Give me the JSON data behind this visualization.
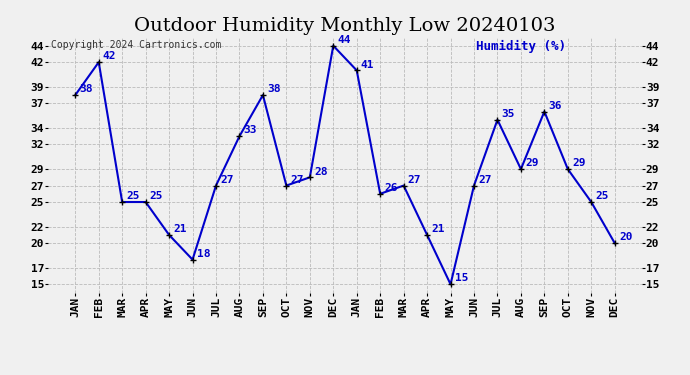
{
  "title": "Outdoor Humidity Monthly Low 20240103",
  "copyright_text": "Copyright 2024 Cartronics.com",
  "legend_label": "Humidity (%)",
  "months": [
    "JAN",
    "FEB",
    "MAR",
    "APR",
    "MAY",
    "JUN",
    "JUL",
    "AUG",
    "SEP",
    "OCT",
    "NOV",
    "DEC",
    "JAN",
    "FEB",
    "MAR",
    "APR",
    "MAY",
    "JUN",
    "JUL",
    "AUG",
    "SEP",
    "OCT",
    "NOV",
    "DEC"
  ],
  "values": [
    38,
    42,
    25,
    25,
    21,
    18,
    27,
    33,
    38,
    27,
    28,
    44,
    41,
    26,
    27,
    21,
    15,
    27,
    35,
    29,
    36,
    29,
    25,
    20
  ],
  "line_color": "#0000cc",
  "marker_color": "#000000",
  "title_fontsize": 14,
  "annotation_fontsize": 8,
  "tick_fontsize": 8,
  "copyright_fontsize": 7,
  "legend_fontsize": 9,
  "ylim_min": 14,
  "ylim_max": 45,
  "yticks": [
    15,
    17,
    20,
    22,
    25,
    27,
    29,
    32,
    34,
    37,
    39,
    42,
    44
  ],
  "grid_color": "#bbbbbb",
  "background_color": "#f0f0f0",
  "legend_color": "#0000cc",
  "line_width": 1.5
}
